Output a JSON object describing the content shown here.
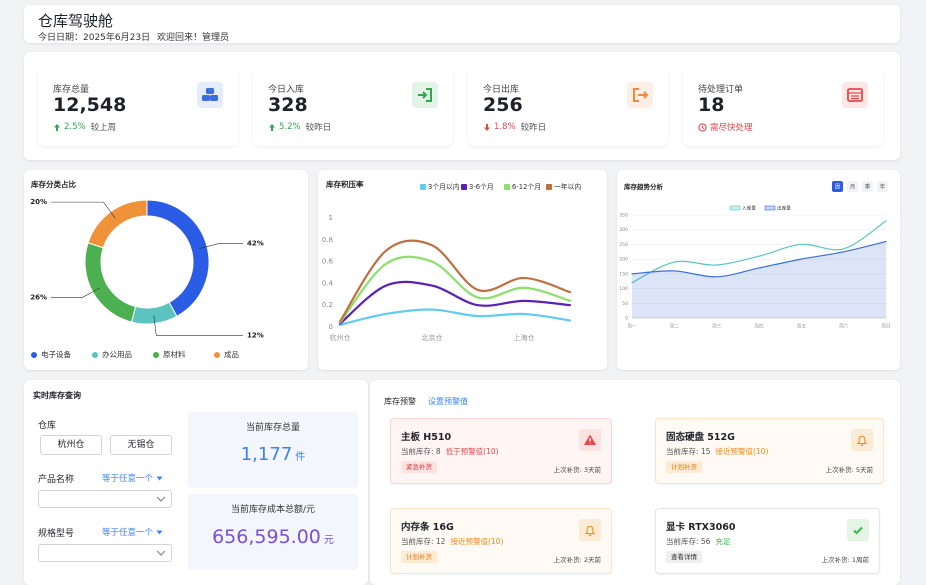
{
  "header": {
    "title": "仓库驾驶舱",
    "date": "今日日期：2025年6月23日",
    "welcome": "欢迎回来！管理员"
  },
  "kpis": [
    {
      "label": "库存总量",
      "value": "12,548",
      "change": "2.5%",
      "compare": "较上周",
      "trend": "up",
      "color": "#3b6fe0"
    },
    {
      "label": "今日入库",
      "value": "328",
      "change": "5.2%",
      "compare": "较昨日",
      "trend": "up",
      "color": "#2fa84f"
    },
    {
      "label": "今日出库",
      "value": "256",
      "change": "1.8%",
      "compare": "较昨日",
      "trend": "down",
      "color": "#f08a3c"
    },
    {
      "label": "待处理订单",
      "value": "18",
      "note": "需尽快处理",
      "color": "#e5484d"
    }
  ],
  "chart_data": [
    {
      "type": "pie",
      "title": "库存分类占比",
      "categories": [
        "电子设备",
        "办公用品",
        "原材料",
        "成品"
      ],
      "values": [
        42,
        12,
        26,
        20
      ],
      "value_labels": [
        "42%",
        "12%",
        "26%",
        "20%"
      ],
      "colors": [
        "#2b5ce6",
        "#5bc4c0",
        "#4caf50",
        "#f0923a"
      ],
      "donut": true
    },
    {
      "type": "line",
      "title": "库存积压率",
      "categories": [
        "杭州仓",
        null,
        "北京仓",
        null,
        "上海仓",
        null
      ],
      "series": [
        {
          "name": "3个月以内",
          "color": "#62cbf0",
          "values": [
            0.02,
            0.12,
            0.16,
            0.1,
            0.12,
            0.06
          ]
        },
        {
          "name": "3-6个月",
          "color": "#5b21b6",
          "values": [
            0.03,
            0.38,
            0.38,
            0.2,
            0.24,
            0.2
          ]
        },
        {
          "name": "6-12个月",
          "color": "#8be06b",
          "values": [
            0.04,
            0.58,
            0.6,
            0.27,
            0.36,
            0.24
          ]
        },
        {
          "name": "一年以内",
          "color": "#c0703f",
          "values": [
            0.05,
            0.7,
            0.75,
            0.34,
            0.45,
            0.32
          ]
        }
      ],
      "ylim": [
        0,
        1
      ],
      "yticks": [
        0,
        0.2,
        0.4,
        0.6,
        0.8,
        1
      ],
      "grid": false,
      "smooth": true
    },
    {
      "type": "line",
      "title": "库存趋势分析",
      "tabs": [
        "周",
        "月",
        "季",
        "年"
      ],
      "active_tab": 0,
      "categories": [
        "周一",
        "周二",
        "周三",
        "周四",
        "周五",
        "周六",
        "周日"
      ],
      "series": [
        {
          "name": "入库量",
          "color": "#5bc4c0",
          "values": [
            120,
            190,
            180,
            210,
            250,
            235,
            330
          ],
          "area": false
        },
        {
          "name": "出库量",
          "color": "#3d6fd9",
          "values": [
            150,
            160,
            140,
            170,
            200,
            225,
            260
          ],
          "area": true
        }
      ],
      "ylim": [
        0,
        350
      ],
      "yticks": [
        0,
        50,
        100,
        150,
        200,
        250,
        300,
        350
      ],
      "grid": true,
      "smooth": true
    }
  ],
  "query": {
    "title": "实时库存查询",
    "warehouse_label": "仓库",
    "warehouses": [
      "杭州仓",
      "无锡仓"
    ],
    "fields": [
      {
        "label": "产品名称",
        "operator": "等于任意一个"
      },
      {
        "label": "规格型号",
        "operator": "等于任意一个"
      }
    ],
    "stats": [
      {
        "label": "当前库存总量",
        "value": "1,177",
        "unit": "件",
        "color": "#3b82f6"
      },
      {
        "label": "当前库存成本总额/元",
        "value": "656,595.00",
        "unit": "元",
        "color": "#7c4ddb"
      }
    ]
  },
  "alerts": {
    "title": "库存预警",
    "action": "设置预警值",
    "items": [
      {
        "name": "主板 H510",
        "stock": "当前库存: 8",
        "status": "低于预警值(10)",
        "tag": "紧急补货",
        "last": "上次补货: 3天前",
        "level": "danger"
      },
      {
        "name": "固态硬盘 512G",
        "stock": "当前库存: 15",
        "status": "接近预警值(10)",
        "tag": "计划补货",
        "last": "上次补货: 5天前",
        "level": "warning"
      },
      {
        "name": "内存条 16G",
        "stock": "当前库存: 12",
        "status": "接近预警值(10)",
        "tag": "计划补货",
        "last": "上次补货: 2天前",
        "level": "warning"
      },
      {
        "name": "显卡 RTX3060",
        "stock": "当前库存: 56",
        "status": "充足",
        "tag": "查看详情",
        "last": "上次补货: 1周前",
        "level": "ok"
      }
    ]
  }
}
